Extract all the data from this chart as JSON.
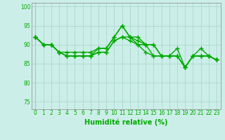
{
  "title": "",
  "xlabel": "Humidité relative (%)",
  "ylabel": "",
  "xlim": [
    -0.5,
    23.5
  ],
  "ylim": [
    73,
    101
  ],
  "yticks": [
    75,
    80,
    85,
    90,
    95,
    100
  ],
  "xticks": [
    0,
    1,
    2,
    3,
    4,
    5,
    6,
    7,
    8,
    9,
    10,
    11,
    12,
    13,
    14,
    15,
    16,
    17,
    18,
    19,
    20,
    21,
    22,
    23
  ],
  "background_color": "#cceee8",
  "grid_color": "#aad8d0",
  "line_color": "#00aa00",
  "series": [
    [
      92,
      90,
      90,
      88,
      87,
      87,
      87,
      87,
      89,
      89,
      92,
      95,
      92,
      92,
      90,
      90,
      87,
      87,
      87,
      84,
      87,
      89,
      87,
      86
    ],
    [
      92,
      90,
      90,
      88,
      88,
      88,
      88,
      88,
      89,
      89,
      92,
      95,
      92,
      91,
      90,
      90,
      87,
      87,
      87,
      84,
      87,
      87,
      87,
      86
    ],
    [
      92,
      90,
      90,
      88,
      87,
      87,
      87,
      87,
      88,
      88,
      91,
      92,
      92,
      90,
      90,
      87,
      87,
      87,
      87,
      84,
      87,
      87,
      87,
      86
    ],
    [
      92,
      90,
      90,
      88,
      87,
      87,
      87,
      87,
      88,
      88,
      91,
      92,
      91,
      90,
      88,
      87,
      87,
      87,
      89,
      84,
      87,
      87,
      87,
      86
    ]
  ],
  "marker": "+",
  "marker_size": 4,
  "line_width": 1.0,
  "font_color": "#00aa00",
  "tick_fontsize": 5.5,
  "label_fontsize": 7,
  "spine_color": "#888888"
}
